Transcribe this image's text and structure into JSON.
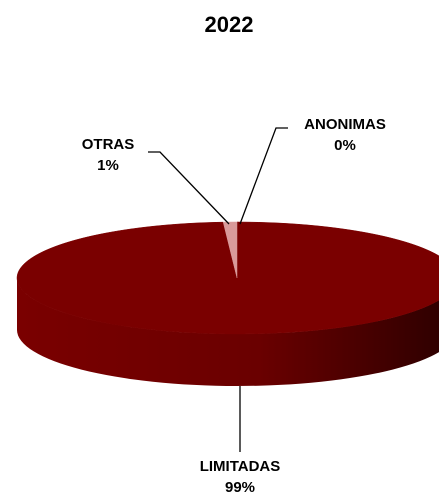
{
  "chart_data": {
    "type": "pie",
    "title": "2022",
    "categories": [
      "ANONIMAS",
      "LIMITADAS",
      "OTRAS"
    ],
    "values": [
      0,
      99,
      1
    ],
    "value_labels": [
      "0%",
      "99%",
      "1%"
    ],
    "colors": [
      "#f2cccc",
      "#7a0000",
      "#d99a9a"
    ]
  }
}
